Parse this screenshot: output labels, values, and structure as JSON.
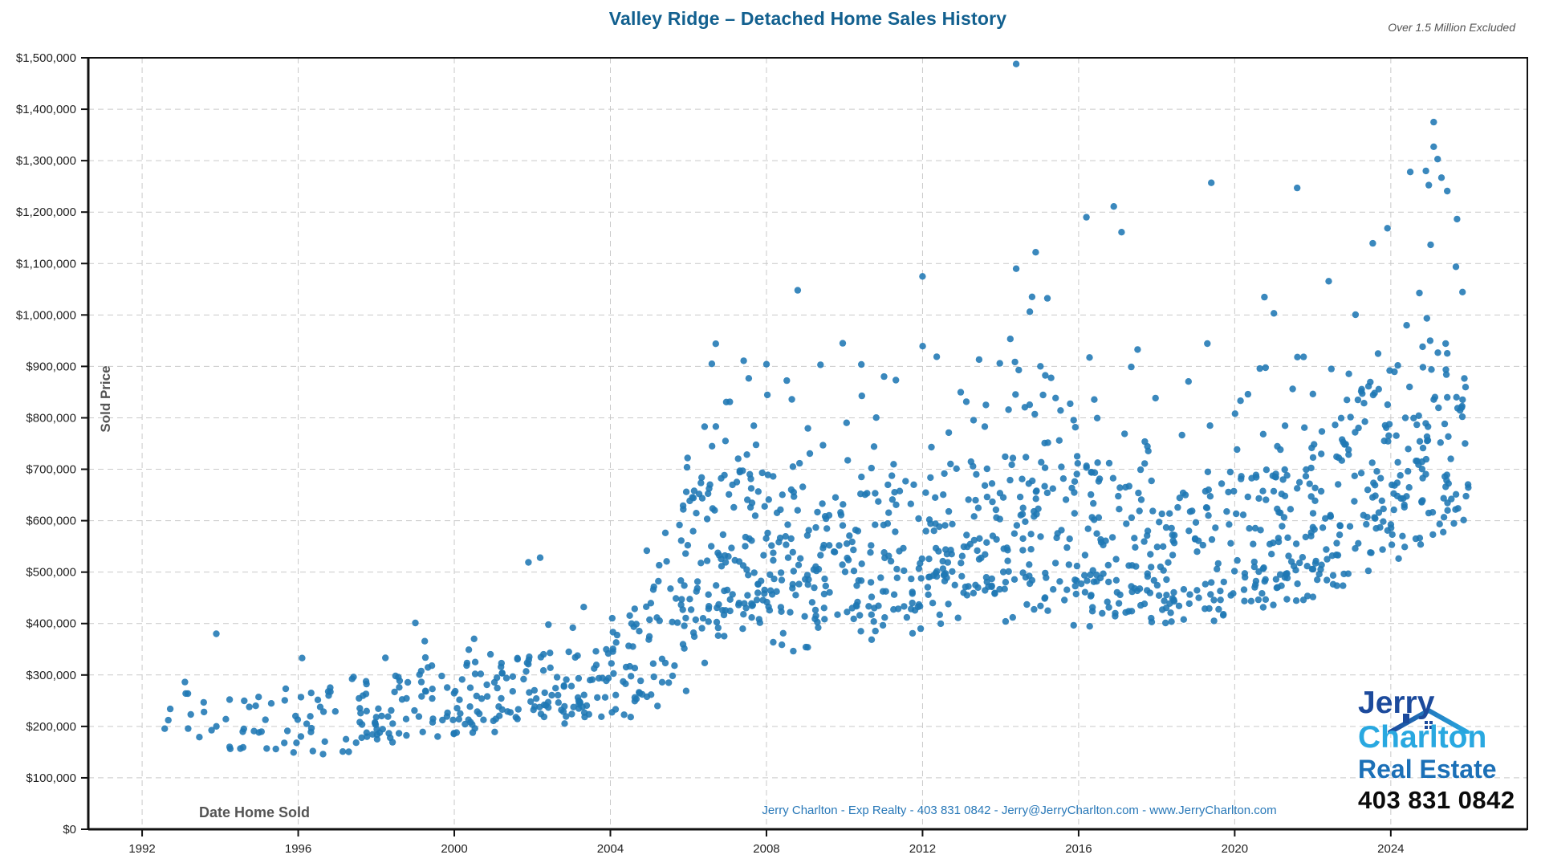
{
  "header": {
    "title": "Valley Ridge – Detached Home Sales History",
    "exclusion_note": "Over 1.5 Million Excluded"
  },
  "footer": {
    "contact_line": "Jerry Charlton - Exp Realty - 403 831 0842 - Jerry@JerryCharlton.com - www.JerryCharlton.com"
  },
  "logo": {
    "line1": "Jerry",
    "line2": "Charlton",
    "line3": "Real Estate",
    "phone": "403 831 0842",
    "color_line1": "#1c4a9c",
    "color_line2": "#29a8e0",
    "color_line3": "#1c70b7",
    "color_phone": "#0b0b0b",
    "house_icon": "roof-with-chimney"
  },
  "chart_data": {
    "type": "scatter",
    "title": "Valley Ridge – Detached Home Sales History",
    "xlabel": "Date Home Sold",
    "ylabel": "Sold Price",
    "xlim": [
      1990.62,
      2027.5
    ],
    "ylim": [
      0,
      1500000
    ],
    "grid": true,
    "grid_color": "#c9c9c9",
    "axis_color": "#111111",
    "tick_label_color": "#222222",
    "axis_label_color": "#555555",
    "point_color": "#1f77b4",
    "point_radius": 4.2,
    "point_opacity": 0.88,
    "x_ticks": [
      1992,
      1996,
      2000,
      2004,
      2008,
      2012,
      2016,
      2020,
      2024
    ],
    "x_tick_labels": [
      "1992",
      "1996",
      "2000",
      "2004",
      "2008",
      "2012",
      "2016",
      "2020",
      "2024"
    ],
    "y_ticks": [
      0,
      100000,
      200000,
      300000,
      400000,
      500000,
      600000,
      700000,
      800000,
      900000,
      1000000,
      1100000,
      1200000,
      1300000,
      1400000,
      1500000
    ],
    "y_tick_labels": [
      "$0",
      "$100,000",
      "$200,000",
      "$300,000",
      "$400,000",
      "$500,000",
      "$600,000",
      "$700,000",
      "$800,000",
      "$900,000",
      "$1,000,000",
      "$1,100,000",
      "$1,200,000",
      "$1,300,000",
      "$1,400,000",
      "$1,500,000"
    ],
    "seed": 20240831,
    "yearly_bands": [
      {
        "year": 1992,
        "n": 3,
        "min": 160000,
        "core_low": 170000,
        "core_high": 240000,
        "max": 265000
      },
      {
        "year": 1993,
        "n": 10,
        "min": 158000,
        "core_low": 200000,
        "core_high": 265000,
        "max": 300000
      },
      {
        "year": 1994,
        "n": 14,
        "min": 158000,
        "core_low": 165000,
        "core_high": 255000,
        "max": 272000
      },
      {
        "year": 1995,
        "n": 13,
        "min": 150000,
        "core_low": 160000,
        "core_high": 240000,
        "max": 262000
      },
      {
        "year": 1996,
        "n": 18,
        "min": 148000,
        "core_low": 165000,
        "core_high": 255000,
        "max": 295000
      },
      {
        "year": 1997,
        "n": 24,
        "min": 140000,
        "core_low": 165000,
        "core_high": 270000,
        "max": 312000
      },
      {
        "year": 1998,
        "n": 26,
        "min": 165000,
        "core_low": 185000,
        "core_high": 290000,
        "max": 360000
      },
      {
        "year": 1999,
        "n": 27,
        "min": 170000,
        "core_low": 190000,
        "core_high": 300000,
        "max": 410000
      },
      {
        "year": 2000,
        "n": 30,
        "min": 180000,
        "core_low": 200000,
        "core_high": 305000,
        "max": 365000
      },
      {
        "year": 2001,
        "n": 32,
        "min": 170000,
        "core_low": 205000,
        "core_high": 310000,
        "max": 430000
      },
      {
        "year": 2002,
        "n": 32,
        "min": 185000,
        "core_low": 215000,
        "core_high": 330000,
        "max": 420000
      },
      {
        "year": 2003,
        "n": 34,
        "min": 200000,
        "core_low": 225000,
        "core_high": 340000,
        "max": 425000
      },
      {
        "year": 2004,
        "n": 38,
        "min": 205000,
        "core_low": 235000,
        "core_high": 370000,
        "max": 465000
      },
      {
        "year": 2005,
        "n": 44,
        "min": 230000,
        "core_low": 255000,
        "core_high": 430000,
        "max": 610000
      },
      {
        "year": 2006,
        "n": 60,
        "min": 260000,
        "core_low": 350000,
        "core_high": 650000,
        "max": 870000
      },
      {
        "year": 2007,
        "n": 62,
        "min": 380000,
        "core_low": 440000,
        "core_high": 700000,
        "max": 905000
      },
      {
        "year": 2008,
        "n": 55,
        "min": 350000,
        "core_low": 430000,
        "core_high": 690000,
        "max": 930000
      },
      {
        "year": 2009,
        "n": 50,
        "min": 330000,
        "core_low": 400000,
        "core_high": 620000,
        "max": 880000
      },
      {
        "year": 2010,
        "n": 50,
        "min": 360000,
        "core_low": 420000,
        "core_high": 650000,
        "max": 975000
      },
      {
        "year": 2011,
        "n": 48,
        "min": 370000,
        "core_low": 420000,
        "core_high": 650000,
        "max": 900000
      },
      {
        "year": 2012,
        "n": 52,
        "min": 380000,
        "core_low": 430000,
        "core_high": 680000,
        "max": 960000
      },
      {
        "year": 2013,
        "n": 54,
        "min": 400000,
        "core_low": 450000,
        "core_high": 700000,
        "max": 950000
      },
      {
        "year": 2014,
        "n": 56,
        "min": 400000,
        "core_low": 460000,
        "core_high": 720000,
        "max": 990000
      },
      {
        "year": 2015,
        "n": 52,
        "min": 400000,
        "core_low": 450000,
        "core_high": 700000,
        "max": 1050000
      },
      {
        "year": 2016,
        "n": 52,
        "min": 390000,
        "core_low": 440000,
        "core_high": 700000,
        "max": 1000000
      },
      {
        "year": 2017,
        "n": 50,
        "min": 400000,
        "core_low": 440000,
        "core_high": 680000,
        "max": 960000
      },
      {
        "year": 2018,
        "n": 46,
        "min": 400000,
        "core_low": 430000,
        "core_high": 650000,
        "max": 950000
      },
      {
        "year": 2019,
        "n": 42,
        "min": 385000,
        "core_low": 430000,
        "core_high": 650000,
        "max": 960000
      },
      {
        "year": 2020,
        "n": 50,
        "min": 420000,
        "core_low": 450000,
        "core_high": 680000,
        "max": 1000000
      },
      {
        "year": 2021,
        "n": 60,
        "min": 430000,
        "core_low": 470000,
        "core_high": 720000,
        "max": 1100000
      },
      {
        "year": 2022,
        "n": 58,
        "min": 450000,
        "core_low": 500000,
        "core_high": 760000,
        "max": 1060000
      },
      {
        "year": 2023,
        "n": 54,
        "min": 480000,
        "core_low": 550000,
        "core_high": 800000,
        "max": 1100000
      },
      {
        "year": 2024,
        "n": 58,
        "min": 500000,
        "core_low": 580000,
        "core_high": 880000,
        "max": 1240000
      },
      {
        "year": 2025,
        "n": 52,
        "min": 560000,
        "core_low": 620000,
        "core_high": 950000,
        "max": 1260000
      }
    ],
    "outliers": [
      [
        1993.9,
        380000
      ],
      [
        1996.1,
        333000
      ],
      [
        2001.9,
        519000
      ],
      [
        2002.2,
        528000
      ],
      [
        2006.6,
        905000
      ],
      [
        2006.7,
        944000
      ],
      [
        2008.8,
        1048000
      ],
      [
        2012.0,
        1075000
      ],
      [
        2014.4,
        1488000
      ],
      [
        2014.4,
        1090000
      ],
      [
        2014.9,
        1122000
      ],
      [
        2016.2,
        1190000
      ],
      [
        2016.9,
        1211000
      ],
      [
        2017.1,
        1161000
      ],
      [
        2019.4,
        1257000
      ],
      [
        2021.6,
        1247000
      ],
      [
        2024.3,
        570000
      ],
      [
        2024.5,
        1278000
      ],
      [
        2024.9,
        1280000
      ],
      [
        2025.1,
        1375000
      ],
      [
        2025.1,
        1327000
      ],
      [
        2025.2,
        1303000
      ],
      [
        2025.3,
        1267000
      ]
    ]
  }
}
